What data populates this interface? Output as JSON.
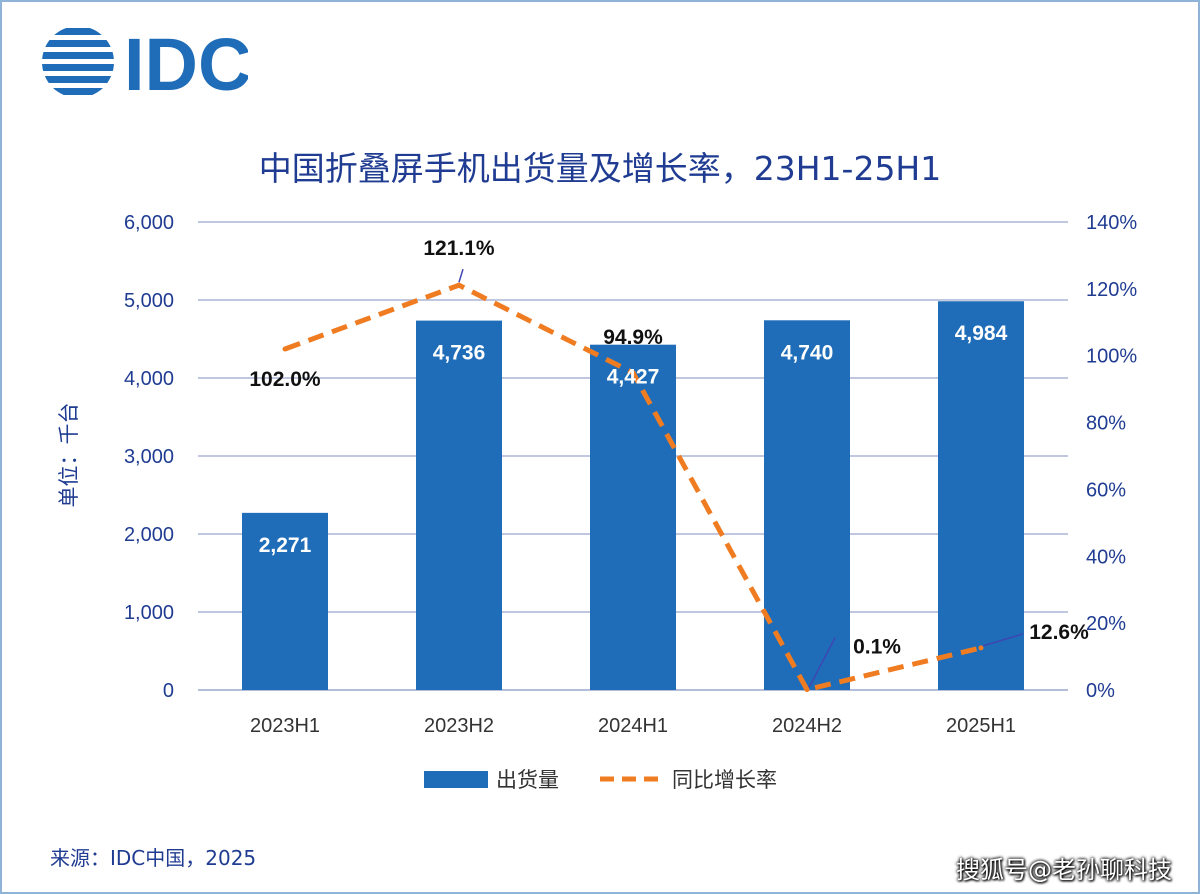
{
  "brand": {
    "logo_text": "IDC",
    "colors": {
      "primary": "#1f6db8",
      "navy": "#1f3c92",
      "line": "#f07c22"
    }
  },
  "source_text": "来源：IDC中国，2025",
  "watermark_text": "搜狐号@老孙聊科技",
  "chart_data": {
    "type": "bar",
    "title": "中国折叠屏手机出货量及增长率，23H1-25H1",
    "ylabel": "单位：千台",
    "categories": [
      "2023H1",
      "2023H2",
      "2024H1",
      "2024H2",
      "2025H1"
    ],
    "ylim": [
      0,
      6000
    ],
    "y2lim": [
      0,
      140
    ],
    "yticks": [
      "0",
      "1,000",
      "2,000",
      "3,000",
      "4,000",
      "5,000",
      "6,000"
    ],
    "y2ticks": [
      "0%",
      "20%",
      "40%",
      "60%",
      "80%",
      "100%",
      "120%",
      "140%"
    ],
    "grid": true,
    "legend_position": "bottom",
    "series": [
      {
        "name": "出货量",
        "type": "bar",
        "axis": "left",
        "color": "#1f6db8",
        "values": [
          2271,
          4736,
          4427,
          4740,
          4984
        ],
        "labels": [
          "2,271",
          "4,736",
          "4,427",
          "4,740",
          "4,984"
        ]
      },
      {
        "name": "同比增长率",
        "type": "line",
        "style": "dashed",
        "axis": "right",
        "color": "#f07c22",
        "values": [
          102.0,
          121.1,
          94.9,
          0.1,
          12.6
        ],
        "labels": [
          "102.0%",
          "121.1%",
          "94.9%",
          "0.1%",
          "12.6%"
        ]
      }
    ]
  }
}
